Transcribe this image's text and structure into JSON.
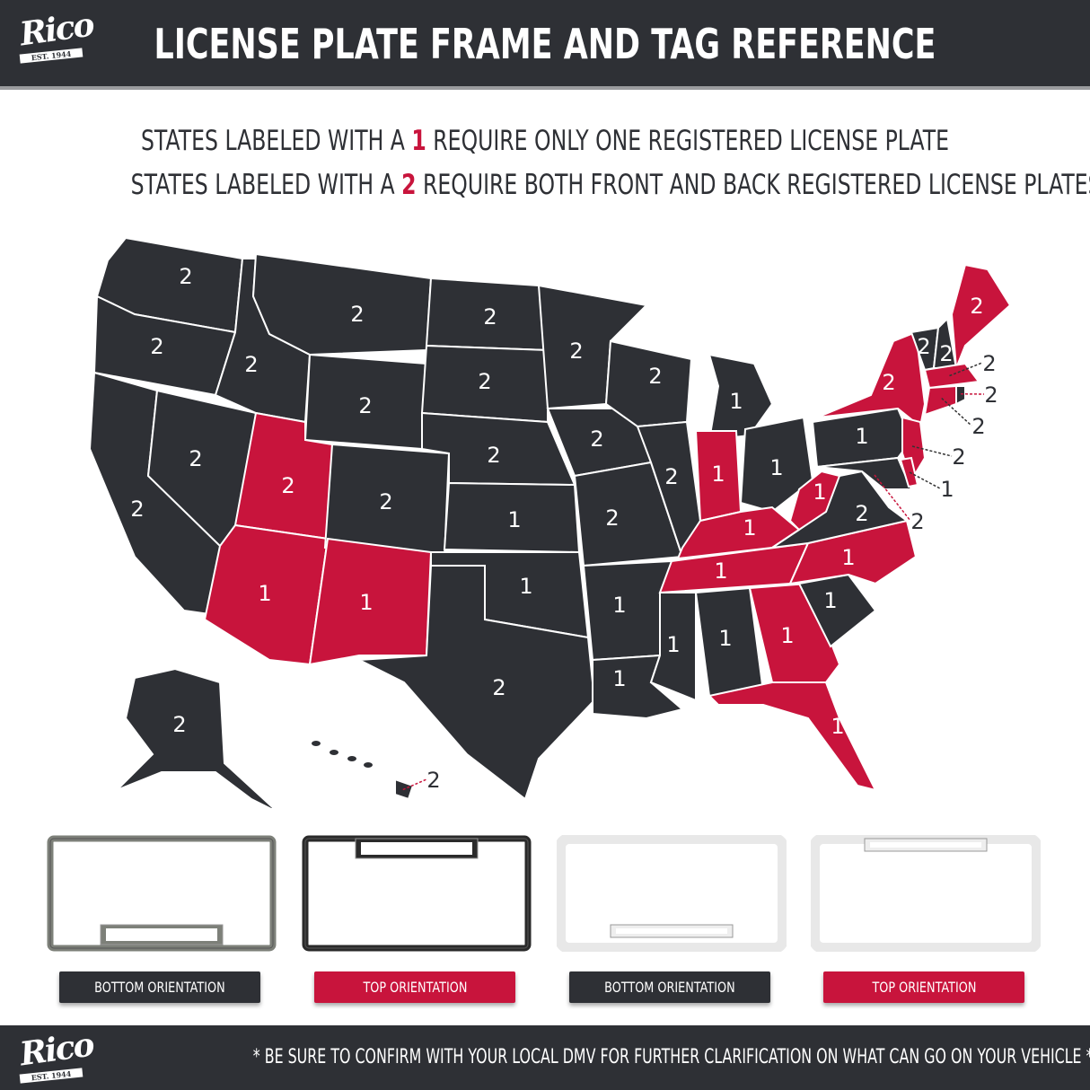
{
  "header": {
    "logo": {
      "name": "Rico",
      "tagline": "EST. 1944"
    },
    "title": "LICENSE PLATE FRAME AND TAG REFERENCE"
  },
  "subtitle": {
    "line1": {
      "pre": "STATES LABELED WITH A ",
      "num": "1",
      "post": " REQUIRE ONLY ONE REGISTERED LICENSE PLATE"
    },
    "line2": {
      "pre": "STATES LABELED WITH A ",
      "num": "2",
      "post": " REQUIRE BOTH FRONT AND BACK REGISTERED LICENSE PLATES"
    }
  },
  "colors": {
    "dark": "#2e3035",
    "highlight": "#c8143c",
    "border": "#ffffff"
  },
  "map": {
    "states": {
      "WA": {
        "label": "2",
        "highlighted": false
      },
      "OR": {
        "label": "2",
        "highlighted": false
      },
      "CA": {
        "label": "2",
        "highlighted": false
      },
      "NV": {
        "label": "2",
        "highlighted": false
      },
      "ID": {
        "label": "2",
        "highlighted": false
      },
      "MT": {
        "label": "2",
        "highlighted": false
      },
      "WY": {
        "label": "2",
        "highlighted": false
      },
      "UT": {
        "label": "2",
        "highlighted": true
      },
      "AZ": {
        "label": "1",
        "highlighted": true
      },
      "CO": {
        "label": "2",
        "highlighted": false
      },
      "NM": {
        "label": "1",
        "highlighted": true
      },
      "ND": {
        "label": "2",
        "highlighted": false
      },
      "SD": {
        "label": "2",
        "highlighted": false
      },
      "NE": {
        "label": "2",
        "highlighted": false
      },
      "KS": {
        "label": "1",
        "highlighted": false
      },
      "OK": {
        "label": "1",
        "highlighted": false
      },
      "TX": {
        "label": "2",
        "highlighted": false
      },
      "MN": {
        "label": "2",
        "highlighted": false
      },
      "IA": {
        "label": "2",
        "highlighted": false
      },
      "MO": {
        "label": "2",
        "highlighted": false
      },
      "AR": {
        "label": "1",
        "highlighted": false
      },
      "LA": {
        "label": "1",
        "highlighted": false
      },
      "WI": {
        "label": "2",
        "highlighted": false
      },
      "IL": {
        "label": "2",
        "highlighted": false
      },
      "MI": {
        "label": "1",
        "highlighted": false
      },
      "IN": {
        "label": "1",
        "highlighted": true
      },
      "OH": {
        "label": "1",
        "highlighted": false
      },
      "KY": {
        "label": "1",
        "highlighted": true
      },
      "TN": {
        "label": "1",
        "highlighted": true
      },
      "MS": {
        "label": "1",
        "highlighted": false
      },
      "AL": {
        "label": "1",
        "highlighted": false
      },
      "GA": {
        "label": "1",
        "highlighted": true
      },
      "FL": {
        "label": "1",
        "highlighted": true
      },
      "SC": {
        "label": "1",
        "highlighted": false
      },
      "NC": {
        "label": "1",
        "highlighted": true
      },
      "VA": {
        "label": "2",
        "highlighted": false
      },
      "WV": {
        "label": "1",
        "highlighted": true
      },
      "PA": {
        "label": "1",
        "highlighted": false
      },
      "NY": {
        "label": "2",
        "highlighted": true
      },
      "NJ": {
        "label": "2",
        "highlighted": true
      },
      "MD": {
        "label": "2",
        "highlighted": false
      },
      "DE": {
        "label": "1",
        "highlighted": true
      },
      "VT": {
        "label": "2",
        "highlighted": false
      },
      "NH": {
        "label": "2",
        "highlighted": false
      },
      "ME": {
        "label": "2",
        "highlighted": true
      },
      "MA": {
        "label": "2",
        "highlighted": true
      },
      "CT": {
        "label": "2",
        "highlighted": true
      },
      "RI": {
        "label": "2",
        "highlighted": false
      },
      "AK": {
        "label": "2",
        "highlighted": false
      },
      "HI": {
        "label": "2",
        "highlighted": false
      }
    }
  },
  "frames": [
    {
      "label": "BOTTOM ORIENTATION",
      "style": "dark",
      "finish": "#7d8079"
    },
    {
      "label": "TOP ORIENTATION",
      "style": "red",
      "finish": "#2a2a2a"
    },
    {
      "label": "BOTTOM ORIENTATION",
      "style": "dark",
      "finish": "#e8e8e8"
    },
    {
      "label": "TOP ORIENTATION",
      "style": "red",
      "finish": "#e8e8e8"
    }
  ],
  "footer": {
    "logo": {
      "name": "Rico",
      "tagline": "EST. 1944"
    },
    "note": "* BE SURE TO CONFIRM WITH YOUR LOCAL DMV FOR FURTHER CLARIFICATION ON WHAT CAN GO ON YOUR VEHICLE *"
  }
}
